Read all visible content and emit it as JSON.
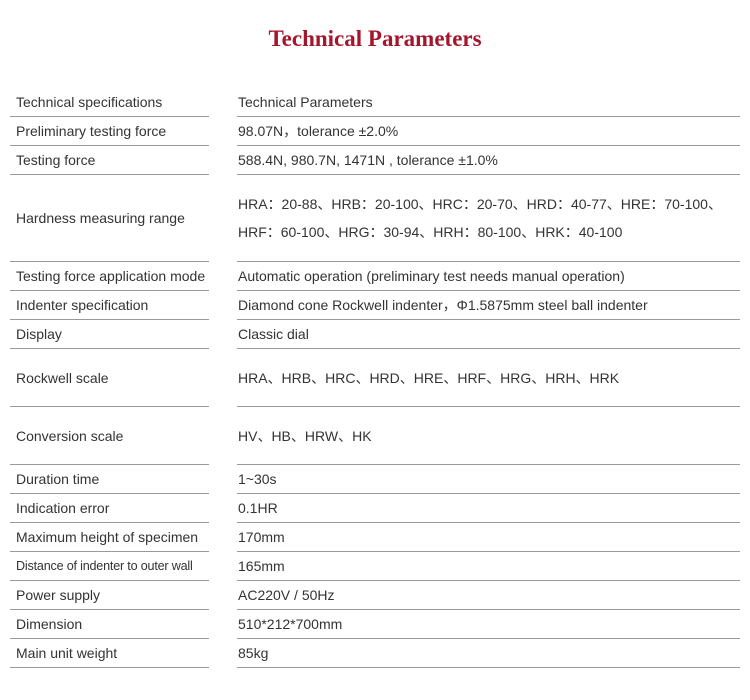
{
  "title": "Technical Parameters",
  "rows": [
    {
      "label": "Technical specifications",
      "value": [
        "Technical Parameters"
      ]
    },
    {
      "label": "Preliminary testing force",
      "value": [
        "98.07N，tolerance ±2.0%"
      ]
    },
    {
      "label": "Testing force",
      "value": [
        "588.4N, 980.7N, 1471N , tolerance ±1.0%"
      ]
    },
    {
      "label": "Hardness measuring range",
      "value": [
        "HRA：20-88、HRB：20-100、HRC：20-70、HRD：40-77、HRE：70-100、",
        "HRF：60-100、HRG：30-94、HRH：80-100、HRK：40-100"
      ]
    },
    {
      "label": "Testing force application mode",
      "value": [
        "Automatic operation (preliminary test needs manual operation)"
      ]
    },
    {
      "label": "Indenter specification",
      "value": [
        "Diamond cone Rockwell indenter，Φ1.5875mm steel ball indenter"
      ]
    },
    {
      "label": "Display",
      "value": [
        "Classic dial"
      ]
    },
    {
      "label": "Rockwell scale",
      "value": [
        "HRA、HRB、HRC、HRD、HRE、HRF、HRG、HRH、HRK"
      ]
    },
    {
      "label": "Conversion scale",
      "value": [
        "HV、HB、HRW、HK"
      ]
    },
    {
      "label": "Duration time",
      "value": [
        "1~30s"
      ]
    },
    {
      "label": "Indication error",
      "value": [
        "0.1HR"
      ]
    },
    {
      "label": "Maximum height of specimen",
      "value": [
        "170mm"
      ]
    },
    {
      "label": "Distance of indenter to outer wall",
      "value": [
        "165mm"
      ]
    },
    {
      "label": "Power supply",
      "value": [
        "AC220V / 50Hz"
      ]
    },
    {
      "label": "Dimension",
      "value": [
        "510*212*700mm"
      ]
    },
    {
      "label": "Main unit weight",
      "value": [
        "85kg"
      ]
    }
  ]
}
